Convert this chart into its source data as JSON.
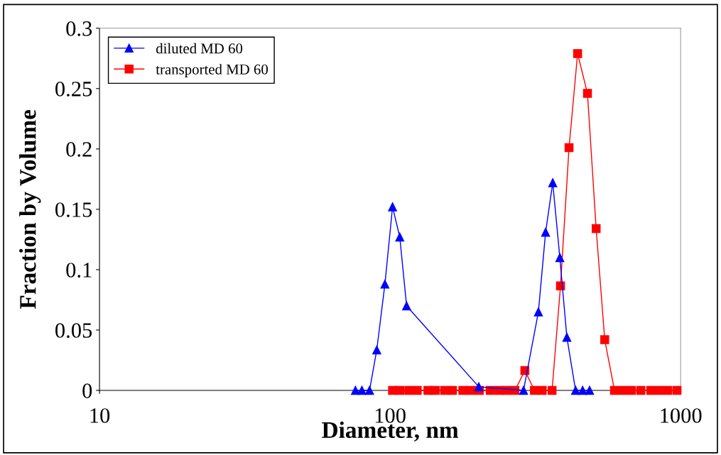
{
  "chart_data": {
    "type": "line",
    "xlabel": "Diameter, nm",
    "ylabel": "Fraction by Volume",
    "log": "x",
    "xlim": [
      10,
      1000
    ],
    "xticks": [
      10,
      100,
      1000
    ],
    "ylim": [
      0,
      0.3
    ],
    "yticks": [
      0,
      0.05,
      0.1,
      0.15,
      0.2,
      0.25,
      0.3
    ],
    "grid": false,
    "legend": "top left",
    "line_style": "solid",
    "series": [
      {
        "name": "diluted MD 60",
        "color": "#0000ff",
        "marker": "triangle",
        "x": [
          76,
          80,
          85,
          90,
          96,
          102,
          108,
          114,
          202,
          288,
          324,
          343,
          363,
          384,
          406,
          435,
          460,
          486
        ],
        "values": [
          0,
          0,
          0,
          0.0335,
          0.088,
          0.152,
          0.127,
          0.07,
          0.003,
          0,
          0.065,
          0.131,
          0.172,
          0.11,
          0.044,
          0,
          0,
          0
        ]
      },
      {
        "name": "transported MD 60",
        "color": "#ff0000",
        "marker": "square",
        "x": [
          102,
          108,
          116,
          124,
          135,
          143,
          154,
          164,
          178,
          190,
          203,
          221,
          237,
          252,
          269,
          291,
          314,
          334,
          361,
          386,
          413,
          442,
          478,
          512,
          548,
          592,
          634,
          678,
          730,
          789,
          845,
          904,
          972
        ],
        "values": [
          0,
          0,
          0,
          0,
          0,
          0,
          0,
          0,
          0,
          0,
          0,
          0,
          0,
          0,
          0,
          0.0165,
          0,
          0,
          0,
          0.0865,
          0.201,
          0.279,
          0.246,
          0.134,
          0.042,
          0,
          0,
          0,
          0,
          0,
          0,
          0,
          0
        ]
      }
    ]
  }
}
